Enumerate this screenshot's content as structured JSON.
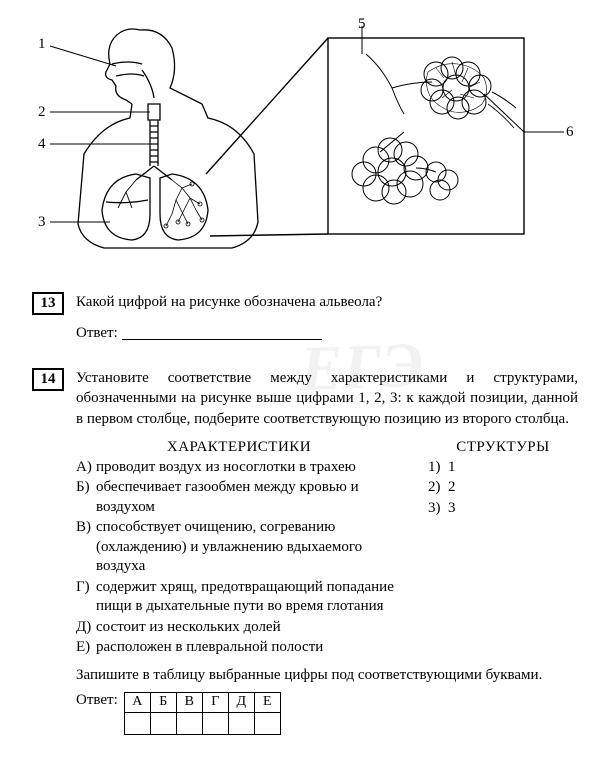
{
  "diagram": {
    "labels": {
      "l1": "1",
      "l2": "2",
      "l3": "3",
      "l4": "4",
      "l5": "5",
      "l6": "6"
    },
    "stroke": "#000000",
    "fill": "#ffffff"
  },
  "q13": {
    "num": "13",
    "text": "Какой цифрой на рисунке обозначена альвеола?",
    "answer_label": "Ответ:"
  },
  "q14": {
    "num": "14",
    "text": "Установите соответствие между характеристиками и структурами, обозначенными на рисунке выше цифрами 1, 2, 3: к каждой позиции, данной в первом столбце, подберите соответствующую позицию из второго столбца.",
    "left_head": "ХАРАКТЕРИСТИКИ",
    "right_head": "СТРУКТУРЫ",
    "options": [
      {
        "key": "А)",
        "text": "проводит воздух из носоглотки в трахею"
      },
      {
        "key": "Б)",
        "text": "обеспечивает газообмен между кровью и воздухом"
      },
      {
        "key": "В)",
        "text": "способствует очищению, согреванию (охлаждению) и увлажнению вдыхаемого воздуха"
      },
      {
        "key": "Г)",
        "text": "содержит хрящ, предотвращающий попадание пищи в дыхательные пути во время глотания"
      },
      {
        "key": "Д)",
        "text": "состоит из нескольких долей"
      },
      {
        "key": "Е)",
        "text": "расположен в плевральной полости"
      }
    ],
    "structures": [
      {
        "key": "1)",
        "text": "1"
      },
      {
        "key": "2)",
        "text": "2"
      },
      {
        "key": "3)",
        "text": "3"
      }
    ],
    "instruction": "Запишите в таблицу выбранные цифры под соответствующими буквами.",
    "answer_label": "Ответ:",
    "table_heads": [
      "А",
      "Б",
      "В",
      "Г",
      "Д",
      "Е"
    ]
  },
  "watermark": "ЕГЭ"
}
